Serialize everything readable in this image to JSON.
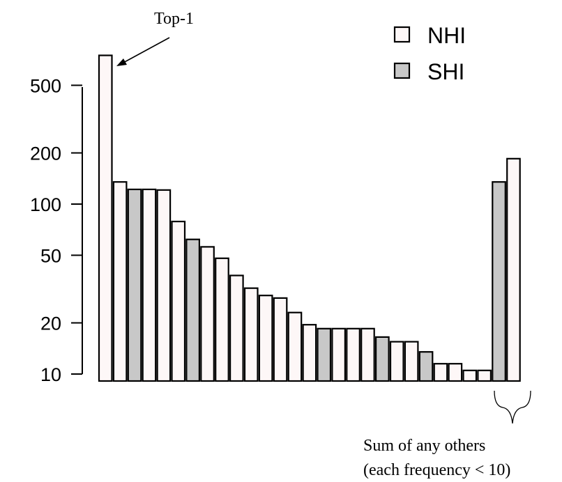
{
  "chart_data": {
    "type": "bar",
    "y_scale": "log",
    "ylim": [
      10,
      800
    ],
    "y_ticks": [
      "10",
      "20",
      "50",
      "100",
      "200",
      "500"
    ],
    "legend": {
      "placement": "top-right",
      "items": [
        {
          "label": "NHI",
          "color": "#fdf7f7"
        },
        {
          "label": "SHI",
          "color": "#c8c8c8"
        }
      ]
    },
    "colors": {
      "NHI": "#fdf7f7",
      "SHI": "#c8c8c8"
    },
    "values": [
      750,
      135,
      122,
      122,
      121,
      79,
      62,
      56,
      48,
      38,
      32,
      29,
      28,
      23,
      19.5,
      18.5,
      18.5,
      18.5,
      18.5,
      16.5,
      15.5,
      15.5,
      13.5,
      11.5,
      11.5,
      10.5,
      10.5,
      135,
      185
    ],
    "groups": [
      "NHI",
      "NHI",
      "SHI",
      "NHI",
      "NHI",
      "NHI",
      "SHI",
      "NHI",
      "NHI",
      "NHI",
      "NHI",
      "NHI",
      "NHI",
      "NHI",
      "NHI",
      "SHI",
      "NHI",
      "NHI",
      "NHI",
      "SHI",
      "NHI",
      "NHI",
      "SHI",
      "NHI",
      "NHI",
      "NHI",
      "NHI",
      "SHI",
      "NHI"
    ],
    "annotations": {
      "top1": "Top-1",
      "others_line1": "Sum of any others",
      "others_line2": "(each frequency < 10)"
    }
  }
}
